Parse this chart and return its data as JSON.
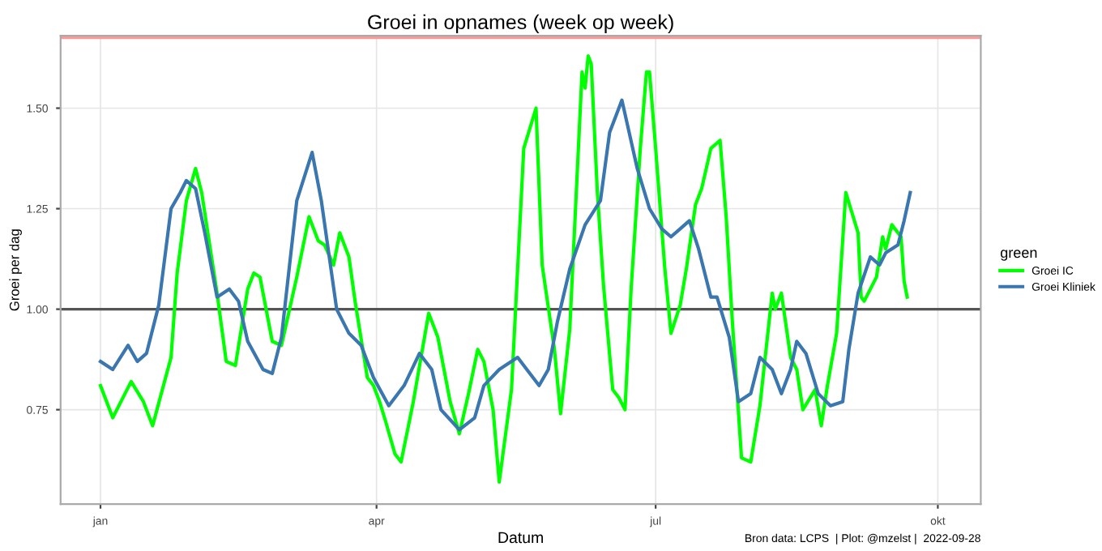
{
  "chart_data": {
    "type": "line",
    "title": "Groei in opnames (week op week)",
    "xlabel": "Datum",
    "ylabel": "Groei per dag",
    "legend_title": "green",
    "annotations": [
      "Bron data: LCPS  | Plot: @mzelst |  2022-09-28"
    ],
    "series": [
      {
        "name": "Groei IC",
        "color": "#00ff00",
        "x": [
          "2022-01-01",
          "2022-01-05",
          "2022-01-11",
          "2022-01-15",
          "2022-01-18",
          "2022-01-24",
          "2022-01-26",
          "2022-01-29",
          "2022-02-01",
          "2022-02-03",
          "2022-02-08",
          "2022-02-11",
          "2022-02-14",
          "2022-02-18",
          "2022-02-20",
          "2022-02-22",
          "2022-02-26",
          "2022-03-01",
          "2022-03-06",
          "2022-03-10",
          "2022-03-13",
          "2022-03-15",
          "2022-03-18",
          "2022-03-20",
          "2022-03-23",
          "2022-03-25",
          "2022-03-29",
          "2022-03-31",
          "2022-04-02",
          "2022-04-04",
          "2022-04-07",
          "2022-04-09",
          "2022-04-13",
          "2022-04-18",
          "2022-04-21",
          "2022-04-25",
          "2022-04-28",
          "2022-05-01",
          "2022-05-04",
          "2022-05-06",
          "2022-05-09",
          "2022-05-11",
          "2022-05-15",
          "2022-05-19",
          "2022-05-23",
          "2022-05-25",
          "2022-05-29",
          "2022-05-31",
          "2022-06-03",
          "2022-06-05",
          "2022-06-07",
          "2022-06-08",
          "2022-06-09",
          "2022-06-10",
          "2022-06-12",
          "2022-06-14",
          "2022-06-17",
          "2022-06-19",
          "2022-06-21",
          "2022-06-23",
          "2022-06-26",
          "2022-06-28",
          "2022-06-29",
          "2022-07-01",
          "2022-07-04",
          "2022-07-06",
          "2022-07-09",
          "2022-07-11",
          "2022-07-14",
          "2022-07-16",
          "2022-07-19",
          "2022-07-22",
          "2022-07-24",
          "2022-07-26",
          "2022-07-29",
          "2022-08-01",
          "2022-08-04",
          "2022-08-08",
          "2022-08-09",
          "2022-08-11",
          "2022-08-14",
          "2022-08-16",
          "2022-08-18",
          "2022-08-22",
          "2022-08-24",
          "2022-08-26",
          "2022-08-29",
          "2022-09-01",
          "2022-09-05",
          "2022-09-06",
          "2022-09-07",
          "2022-09-11",
          "2022-09-13",
          "2022-09-14",
          "2022-09-16",
          "2022-09-19",
          "2022-09-20",
          "2022-09-21"
        ],
        "values": [
          0.81,
          0.73,
          0.82,
          0.77,
          0.71,
          0.88,
          1.09,
          1.27,
          1.35,
          1.29,
          1.04,
          0.87,
          0.86,
          1.05,
          1.09,
          1.08,
          0.92,
          0.91,
          1.08,
          1.23,
          1.17,
          1.16,
          1.11,
          1.19,
          1.13,
          1.02,
          0.83,
          0.81,
          0.77,
          0.72,
          0.64,
          0.62,
          0.77,
          0.99,
          0.93,
          0.77,
          0.69,
          0.79,
          0.9,
          0.87,
          0.75,
          0.57,
          0.8,
          1.4,
          1.5,
          1.11,
          0.9,
          0.74,
          0.95,
          1.27,
          1.59,
          1.55,
          1.63,
          1.61,
          1.29,
          1.06,
          0.8,
          0.78,
          0.75,
          1.05,
          1.4,
          1.59,
          1.59,
          1.4,
          1.1,
          0.94,
          1.01,
          1.1,
          1.26,
          1.3,
          1.4,
          1.42,
          1.23,
          0.97,
          0.63,
          0.62,
          0.76,
          1.04,
          1.0,
          1.04,
          0.88,
          0.85,
          0.75,
          0.8,
          0.71,
          0.81,
          0.94,
          1.29,
          1.19,
          1.03,
          1.02,
          1.08,
          1.18,
          1.15,
          1.21,
          1.18,
          1.07,
          1.03
        ]
      },
      {
        "name": "Groei Kliniek",
        "color": "#3a76af",
        "x": [
          "2022-01-01",
          "2022-01-05",
          "2022-01-10",
          "2022-01-13",
          "2022-01-16",
          "2022-01-20",
          "2022-01-24",
          "2022-01-27",
          "2022-01-29",
          "2022-02-01",
          "2022-02-04",
          "2022-02-08",
          "2022-02-12",
          "2022-02-15",
          "2022-02-18",
          "2022-02-23",
          "2022-02-26",
          "2022-03-01",
          "2022-03-06",
          "2022-03-11",
          "2022-03-14",
          "2022-03-19",
          "2022-03-23",
          "2022-03-27",
          "2022-03-31",
          "2022-04-05",
          "2022-04-10",
          "2022-04-15",
          "2022-04-19",
          "2022-04-22",
          "2022-04-28",
          "2022-05-03",
          "2022-05-06",
          "2022-05-11",
          "2022-05-17",
          "2022-05-20",
          "2022-05-24",
          "2022-05-27",
          "2022-05-30",
          "2022-06-03",
          "2022-06-08",
          "2022-06-13",
          "2022-06-16",
          "2022-06-20",
          "2022-06-25",
          "2022-06-29",
          "2022-07-03",
          "2022-07-06",
          "2022-07-09",
          "2022-07-12",
          "2022-07-15",
          "2022-07-19",
          "2022-07-21",
          "2022-07-25",
          "2022-07-28",
          "2022-08-01",
          "2022-08-04",
          "2022-08-08",
          "2022-08-11",
          "2022-08-14",
          "2022-08-16",
          "2022-08-19",
          "2022-08-23",
          "2022-08-27",
          "2022-08-31",
          "2022-09-02",
          "2022-09-05",
          "2022-09-09",
          "2022-09-12",
          "2022-09-14",
          "2022-09-18",
          "2022-09-20",
          "2022-09-22"
        ],
        "values": [
          0.87,
          0.85,
          0.91,
          0.87,
          0.89,
          1.01,
          1.25,
          1.29,
          1.32,
          1.3,
          1.19,
          1.03,
          1.05,
          1.02,
          0.92,
          0.85,
          0.84,
          0.93,
          1.27,
          1.39,
          1.27,
          1.0,
          0.94,
          0.91,
          0.83,
          0.76,
          0.81,
          0.89,
          0.85,
          0.75,
          0.7,
          0.73,
          0.81,
          0.85,
          0.88,
          0.85,
          0.81,
          0.85,
          0.97,
          1.1,
          1.21,
          1.27,
          1.44,
          1.52,
          1.35,
          1.25,
          1.2,
          1.18,
          1.2,
          1.22,
          1.15,
          1.03,
          1.03,
          0.93,
          0.77,
          0.79,
          0.88,
          0.85,
          0.79,
          0.85,
          0.92,
          0.89,
          0.79,
          0.76,
          0.77,
          0.9,
          1.04,
          1.13,
          1.11,
          1.14,
          1.16,
          1.22,
          1.29
        ]
      }
    ],
    "ref_lines": [
      {
        "axis": "y",
        "value": 1.0,
        "color": "#555555"
      },
      {
        "axis": "y",
        "value": 1.675,
        "color": "#ff9999"
      }
    ],
    "xlim": [
      "2021-12-19",
      "2022-10-15"
    ],
    "xticks": [
      {
        "value": "2022-01-01",
        "label": "jan"
      },
      {
        "value": "2022-04-01",
        "label": "apr"
      },
      {
        "value": "2022-07-01",
        "label": "jul"
      },
      {
        "value": "2022-10-01",
        "label": "okt"
      }
    ],
    "ylim": [
      0.515,
      1.68
    ],
    "yticks": [
      {
        "value": 0.75,
        "label": "0.75"
      },
      {
        "value": 1.0,
        "label": "1.00"
      },
      {
        "value": 1.25,
        "label": "1.25"
      },
      {
        "value": 1.5,
        "label": "1.50"
      }
    ],
    "grid": true,
    "legend": "right",
    "line_style": "solid"
  }
}
